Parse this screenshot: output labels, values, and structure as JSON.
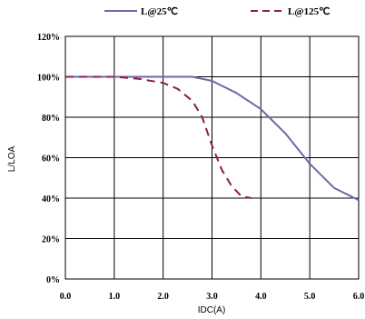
{
  "chart_data": {
    "type": "line",
    "xlabel": "IDC(A)",
    "ylabel": "L/LOA",
    "xlim": [
      0,
      6
    ],
    "ylim": [
      0,
      120
    ],
    "x_ticks": [
      "0.0",
      "1.0",
      "2.0",
      "3.0",
      "4.0",
      "5.0",
      "6.0"
    ],
    "y_ticks": [
      "0%",
      "20%",
      "40%",
      "60%",
      "80%",
      "100%",
      "120%"
    ],
    "grid": true,
    "legend_position": "top",
    "series": [
      {
        "name": "L@25℃",
        "style": "solid",
        "color": "#6a6aa8",
        "x": [
          0,
          1.0,
          2.0,
          2.6,
          3.0,
          3.5,
          4.0,
          4.5,
          5.0,
          5.5,
          6.0
        ],
        "y": [
          100,
          100,
          100,
          100,
          98,
          92,
          84,
          72,
          57,
          45,
          39
        ]
      },
      {
        "name": "L@125℃",
        "style": "dashed",
        "color": "#8c1d45",
        "x": [
          0,
          1.0,
          1.5,
          2.0,
          2.3,
          2.6,
          2.8,
          3.0,
          3.2,
          3.4,
          3.6,
          3.8
        ],
        "y": [
          100,
          100,
          99,
          97,
          94,
          88,
          80,
          66,
          54,
          46,
          41,
          40
        ]
      }
    ]
  }
}
